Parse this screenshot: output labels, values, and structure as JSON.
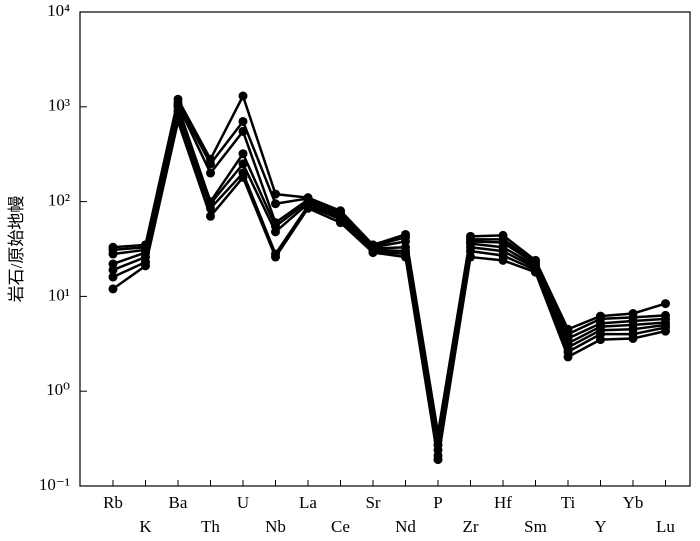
{
  "chart_data": {
    "type": "line",
    "y_label": "岩石/原始地幔",
    "categories": [
      "Rb",
      "K",
      "Ba",
      "Th",
      "U",
      "Nb",
      "La",
      "Ce",
      "Sr",
      "Nd",
      "P",
      "Zr",
      "Hf",
      "Sm",
      "Ti",
      "Y",
      "Yb",
      "Lu"
    ],
    "color": "#000000",
    "log_y": true,
    "grid": false,
    "ylim": [
      0.1,
      10000
    ],
    "yticks": [
      {
        "value": 0.1,
        "label": "10⁻¹"
      },
      {
        "value": 1,
        "label": "10⁰"
      },
      {
        "value": 10,
        "label": "10¹"
      },
      {
        "value": 100,
        "label": "10²"
      },
      {
        "value": 1000,
        "label": "10³"
      },
      {
        "value": 10000,
        "label": "10⁴"
      }
    ],
    "series": [
      {
        "values": [
          12,
          21,
          700,
          70,
          180,
          26,
          85,
          60,
          29,
          26,
          0.19,
          26,
          24,
          18,
          2.3,
          3.5,
          3.6,
          4.3
        ]
      },
      {
        "values": [
          16,
          23,
          800,
          85,
          200,
          28,
          90,
          65,
          30,
          28,
          0.21,
          30,
          27,
          19,
          2.6,
          4.0,
          4.0,
          4.7
        ]
      },
      {
        "values": [
          19,
          26,
          900,
          95,
          250,
          48,
          95,
          68,
          31,
          30,
          0.24,
          33,
          30,
          20,
          2.9,
          4.4,
          4.5,
          5.0
        ]
      },
      {
        "values": [
          22,
          29,
          1000,
          100,
          320,
          55,
          100,
          72,
          32,
          33,
          0.27,
          36,
          33,
          21,
          3.2,
          4.8,
          5.0,
          5.3
        ]
      },
      {
        "values": [
          28,
          31,
          1050,
          200,
          550,
          60,
          105,
          75,
          33,
          38,
          0.3,
          38,
          37,
          22,
          3.6,
          5.2,
          5.5,
          5.8
        ]
      },
      {
        "values": [
          31,
          33,
          1100,
          250,
          700,
          95,
          108,
          78,
          34,
          42,
          0.33,
          40,
          40,
          23,
          4.0,
          5.8,
          6.0,
          6.3
        ]
      },
      {
        "values": [
          33,
          35,
          1200,
          280,
          1300,
          120,
          110,
          80,
          35,
          45,
          0.36,
          43,
          44,
          24,
          4.5,
          6.2,
          6.6,
          8.4
        ]
      }
    ]
  }
}
